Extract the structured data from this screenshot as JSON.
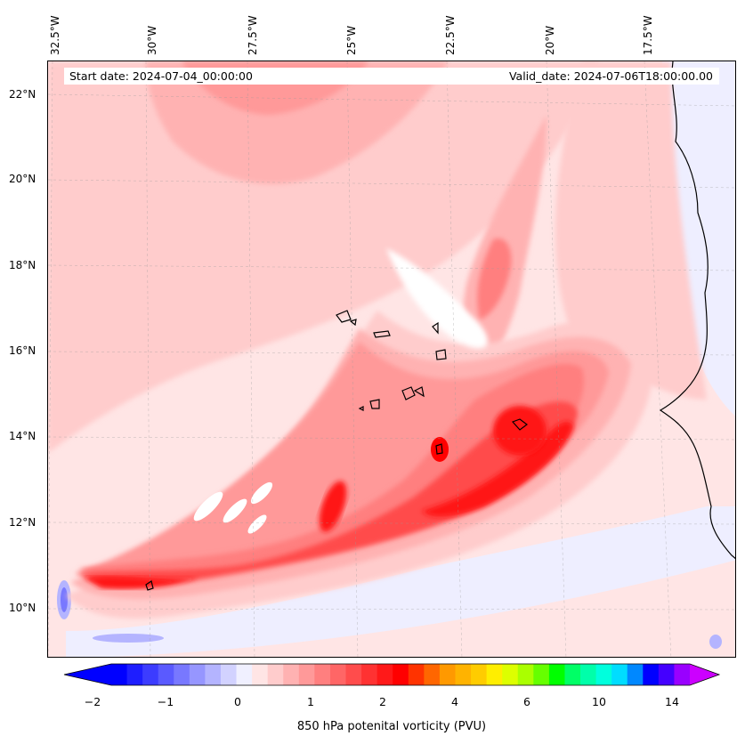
{
  "header": {
    "start_date": "Start date: 2024-07-04_00:00:00",
    "valid_date": "Valid_date: 2024-07-06T18:00:00.00"
  },
  "axes": {
    "lon_labels": [
      "32.5°W",
      "30°W",
      "27.5°W",
      "25°W",
      "22.5°W",
      "20°W",
      "17.5°W"
    ],
    "lat_labels": [
      "22°N",
      "20°N",
      "18°N",
      "16°N",
      "14°N",
      "12°N",
      "10°N"
    ]
  },
  "colorbar": {
    "label": "850 hPa potenital vorticity (PVU)",
    "ticks": [
      "−2",
      "−1",
      "0",
      "1",
      "2",
      "4",
      "6",
      "10",
      "14"
    ],
    "colors": [
      "#0000ff",
      "#1e1eff",
      "#3c3cff",
      "#5a5aff",
      "#7878ff",
      "#9696ff",
      "#b4b4ff",
      "#d2d2ff",
      "#f0f0ff",
      "#ffe5e5",
      "#ffcccc",
      "#ffb2b2",
      "#ff9999",
      "#ff7f7f",
      "#ff6666",
      "#ff4c4c",
      "#ff3232",
      "#ff1919",
      "#ff0000",
      "#ff3300",
      "#ff6600",
      "#ff9900",
      "#ffb300",
      "#ffcc00",
      "#ffee00",
      "#ddff00",
      "#aaff00",
      "#66ff00",
      "#00ff00",
      "#00ff66",
      "#00ffaa",
      "#00ffdd",
      "#00ddff",
      "#0088ff",
      "#0000ff",
      "#4400ff",
      "#9900ff"
    ],
    "extend_low_color": "#0000ff",
    "extend_high_color": "#cc00ff"
  },
  "field_colors": {
    "pale": "#ffe5e5",
    "light": "#ffcccc",
    "medium_light": "#ffb2b2",
    "medium": "#ff9999",
    "medium_strong": "#ff7f7f",
    "strong": "#ff4c4c",
    "very_strong": "#ff1919",
    "peak": "#ff0000",
    "negative_light": "#eeeeff",
    "negative_medium": "#b4b4ff",
    "negative_strong": "#7878ff",
    "white": "#ffffff",
    "land": "#ffe5e5",
    "coast": "#000000"
  }
}
